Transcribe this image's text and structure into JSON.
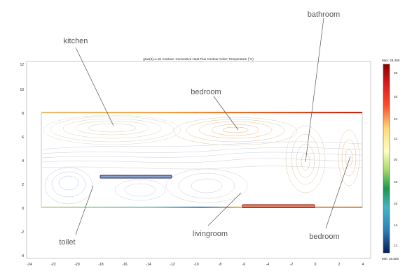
{
  "plot": {
    "title": "grav(3)=1.81   Contour: Convective Heat Flux   Contour Color: Temperature (°C)",
    "x_ticks": [
      "-24",
      "-22",
      "-20",
      "-18",
      "-16",
      "-14",
      "-12",
      "-10",
      "-8",
      "-6",
      "-4",
      "-2",
      "0",
      "2",
      "4"
    ],
    "y_ticks": [
      "12",
      "10",
      "8",
      "6",
      "4",
      "2",
      "0",
      "-2",
      "-4"
    ]
  },
  "colorbar": {
    "max_label": "Max: 29.300",
    "min_label": "Min: 16.500",
    "ticks": [
      "28",
      "26",
      "24",
      "22",
      "20",
      "18",
      "16",
      "14",
      "12"
    ],
    "colors": [
      "#8b0000",
      "#d7191c",
      "#fc4e2a",
      "#fd8d3c",
      "#fed976",
      "#ffffbf",
      "#a6d96a",
      "#1a9850",
      "#41b6c4",
      "#2c7fb8",
      "#253494",
      "#081d58"
    ]
  },
  "labels": {
    "kitchen": "kitchen",
    "bedroom_top": "bedroom",
    "bathroom": "bathroom",
    "toilet": "toilet",
    "livingroom": "livingroom",
    "bedroom_right": "bedroom"
  }
}
